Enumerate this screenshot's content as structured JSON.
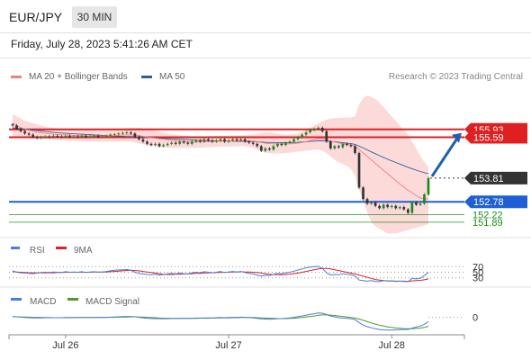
{
  "header": {
    "pair": "EUR/JPY",
    "timeframe": "30 MIN"
  },
  "datetime": "Friday, July 28, 2023 5:41:26 AM CET",
  "legend": {
    "ma20": {
      "label": "MA 20 + Bollinger Bands",
      "color": "#f08080"
    },
    "ma50": {
      "label": "MA 50",
      "color": "#2c5e9e"
    }
  },
  "credit": "Research © 2023 Trading Central",
  "colors": {
    "resistance": "#e02020",
    "support": "#1e5fd6",
    "target": "#1b8a1b",
    "current": "#333333",
    "arrow": "#1e5fb0",
    "bollinger": "#fbd4d4",
    "bull": "#1b8a1b",
    "bear": "#333333"
  },
  "chart_data": [
    {
      "type": "candlestick",
      "title": "EUR/JPY 30 MIN",
      "x_ticks": [
        "Jul 26",
        "Jul 27",
        "Jul 28"
      ],
      "price_levels": [
        {
          "label": "155.93",
          "value": 155.93,
          "kind": "resistance"
        },
        {
          "label": "155.59",
          "value": 155.59,
          "kind": "resistance"
        },
        {
          "label": "153.81",
          "value": 153.81,
          "kind": "current"
        },
        {
          "label": "152.78",
          "value": 152.78,
          "kind": "support"
        },
        {
          "label": "152.22",
          "value": 152.22,
          "kind": "target"
        },
        {
          "label": "151.89",
          "value": 151.89,
          "kind": "target"
        }
      ],
      "closes": [
        156.1,
        155.95,
        155.85,
        155.75,
        155.7,
        155.6,
        155.55,
        155.6,
        155.62,
        155.6,
        155.65,
        155.62,
        155.6,
        155.65,
        155.6,
        155.62,
        155.6,
        155.65,
        155.6,
        155.62,
        155.65,
        155.6,
        155.62,
        155.65,
        155.7,
        155.72,
        155.75,
        155.78,
        155.8,
        155.75,
        155.6,
        155.5,
        155.4,
        155.3,
        155.25,
        155.3,
        155.2,
        155.25,
        155.3,
        155.35,
        155.3,
        155.4,
        155.35,
        155.3,
        155.4,
        155.45,
        155.4,
        155.5,
        155.45,
        155.4,
        155.45,
        155.5,
        155.4,
        155.45,
        155.5,
        155.45,
        155.5,
        155.4,
        155.35,
        155.3,
        155.2,
        155.0,
        155.1,
        155.05,
        155.2,
        155.3,
        155.25,
        155.35,
        155.4,
        155.5,
        155.6,
        155.7,
        155.8,
        155.9,
        155.95,
        156.0,
        155.85,
        155.4,
        155.1,
        155.2,
        155.15,
        155.3,
        155.25,
        155.2,
        154.9,
        153.4,
        152.9,
        152.7,
        152.75,
        152.6,
        152.5,
        152.65,
        152.55,
        152.6,
        152.5,
        152.55,
        152.45,
        152.3,
        152.75,
        152.65,
        152.7,
        153.1,
        153.81
      ],
      "ma20": [
        156.2,
        156.1,
        156.0,
        155.95,
        155.9,
        155.85,
        155.8,
        155.78,
        155.76,
        155.74,
        155.72,
        155.71,
        155.7,
        155.69,
        155.68,
        155.67,
        155.66,
        155.66,
        155.65,
        155.65,
        155.65,
        155.64,
        155.64,
        155.64,
        155.65,
        155.66,
        155.67,
        155.68,
        155.69,
        155.69,
        155.68,
        155.66,
        155.63,
        155.6,
        155.57,
        155.55,
        155.52,
        155.5,
        155.48,
        155.46,
        155.43,
        155.42,
        155.4,
        155.38,
        155.38,
        155.38,
        155.38,
        155.39,
        155.4,
        155.4,
        155.41,
        155.42,
        155.42,
        155.43,
        155.43,
        155.43,
        155.44,
        155.44,
        155.43,
        155.42,
        155.4,
        155.36,
        155.33,
        155.31,
        155.3,
        155.3,
        155.3,
        155.3,
        155.3,
        155.31,
        155.33,
        155.36,
        155.4,
        155.44,
        155.48,
        155.52,
        155.52,
        155.48,
        155.42,
        155.38,
        155.34,
        155.31,
        155.28,
        155.25,
        155.2,
        155.05,
        154.9,
        154.75,
        154.6,
        154.45,
        154.3,
        154.15,
        154.0,
        153.85,
        153.7,
        153.55,
        153.42,
        153.28,
        153.18,
        153.05,
        152.95,
        152.9,
        152.9
      ],
      "ma50": [
        156.0,
        155.98,
        155.96,
        155.94,
        155.92,
        155.9,
        155.88,
        155.86,
        155.84,
        155.82,
        155.8,
        155.78,
        155.77,
        155.76,
        155.75,
        155.74,
        155.73,
        155.72,
        155.71,
        155.7,
        155.69,
        155.68,
        155.67,
        155.66,
        155.65,
        155.64,
        155.63,
        155.63,
        155.62,
        155.62,
        155.61,
        155.6,
        155.59,
        155.58,
        155.57,
        155.56,
        155.55,
        155.54,
        155.53,
        155.52,
        155.51,
        155.5,
        155.49,
        155.48,
        155.47,
        155.46,
        155.45,
        155.45,
        155.44,
        155.44,
        155.43,
        155.43,
        155.42,
        155.42,
        155.42,
        155.41,
        155.41,
        155.41,
        155.4,
        155.4,
        155.39,
        155.38,
        155.37,
        155.36,
        155.36,
        155.35,
        155.35,
        155.35,
        155.35,
        155.36,
        155.37,
        155.38,
        155.39,
        155.41,
        155.42,
        155.43,
        155.43,
        155.42,
        155.4,
        155.39,
        155.37,
        155.35,
        155.33,
        155.31,
        155.28,
        155.2,
        155.12,
        155.04,
        154.95,
        154.87,
        154.79,
        154.71,
        154.63,
        154.56,
        154.49,
        154.42,
        154.35,
        154.28,
        154.22,
        154.16,
        154.1,
        154.05,
        154.0
      ],
      "bb_upper": [
        156.6,
        156.5,
        156.4,
        156.3,
        156.25,
        156.2,
        156.15,
        156.1,
        156.05,
        156.02,
        156.0,
        155.98,
        155.96,
        155.95,
        155.94,
        155.93,
        155.92,
        155.92,
        155.91,
        155.9,
        155.9,
        155.89,
        155.89,
        155.89,
        155.9,
        155.92,
        155.94,
        155.96,
        155.98,
        155.99,
        156.0,
        156.0,
        155.98,
        155.96,
        155.92,
        155.88,
        155.84,
        155.8,
        155.75,
        155.72,
        155.7,
        155.68,
        155.66,
        155.64,
        155.62,
        155.62,
        155.62,
        155.62,
        155.63,
        155.64,
        155.65,
        155.66,
        155.66,
        155.67,
        155.67,
        155.67,
        155.68,
        155.68,
        155.7,
        155.72,
        155.75,
        155.78,
        155.8,
        155.8,
        155.78,
        155.75,
        155.72,
        155.7,
        155.7,
        155.72,
        155.76,
        155.82,
        155.9,
        156.0,
        156.1,
        156.2,
        156.28,
        156.35,
        156.4,
        156.42,
        156.43,
        156.44,
        156.45,
        156.45,
        156.5,
        157.0,
        157.3,
        157.4,
        157.35,
        157.25,
        157.1,
        156.9,
        156.7,
        156.5,
        156.3,
        156.1,
        155.9,
        155.7,
        155.4,
        155.1,
        154.8,
        154.5,
        154.3
      ],
      "bb_lower": [
        155.6,
        155.58,
        155.56,
        155.55,
        155.54,
        155.53,
        155.52,
        155.52,
        155.51,
        155.5,
        155.48,
        155.47,
        155.46,
        155.45,
        155.44,
        155.43,
        155.42,
        155.42,
        155.41,
        155.4,
        155.4,
        155.39,
        155.39,
        155.39,
        155.4,
        155.4,
        155.4,
        155.4,
        155.4,
        155.39,
        155.36,
        155.32,
        155.28,
        155.24,
        155.2,
        155.18,
        155.16,
        155.14,
        155.12,
        155.12,
        155.12,
        155.12,
        155.12,
        155.12,
        155.12,
        155.12,
        155.12,
        155.14,
        155.15,
        155.16,
        155.17,
        155.18,
        155.18,
        155.19,
        155.19,
        155.19,
        155.2,
        155.2,
        155.16,
        155.12,
        155.05,
        154.98,
        154.92,
        154.9,
        154.88,
        154.88,
        154.88,
        154.9,
        154.92,
        154.94,
        154.96,
        154.98,
        155.0,
        155.02,
        155.04,
        155.05,
        155.0,
        154.9,
        154.75,
        154.6,
        154.5,
        154.42,
        154.35,
        154.2,
        153.9,
        153.3,
        152.8,
        152.3,
        151.9,
        151.7,
        151.6,
        151.5,
        151.4,
        151.4,
        151.4,
        151.45,
        151.5,
        151.55,
        151.6,
        151.65,
        151.7,
        151.75,
        151.8
      ],
      "y_range": [
        151.3,
        157.8
      ]
    },
    {
      "type": "line",
      "title": "RSI",
      "series": [
        {
          "name": "RSI",
          "color": "#4a7fd6"
        },
        {
          "name": "9MA",
          "color": "#e02020"
        }
      ],
      "y_ticks": [
        "70",
        "50",
        "30"
      ],
      "y_range": [
        0,
        100
      ],
      "rsi": [
        55,
        50,
        48,
        47,
        46,
        45,
        47,
        49,
        50,
        49,
        51,
        50,
        49,
        52,
        50,
        51,
        50,
        52,
        49,
        51,
        52,
        50,
        51,
        53,
        55,
        57,
        58,
        59,
        60,
        57,
        50,
        46,
        44,
        42,
        41,
        43,
        40,
        42,
        44,
        46,
        44,
        47,
        45,
        44,
        48,
        50,
        48,
        52,
        50,
        48,
        50,
        53,
        49,
        51,
        53,
        51,
        53,
        49,
        46,
        44,
        40,
        36,
        39,
        38,
        43,
        46,
        45,
        48,
        50,
        54,
        58,
        62,
        66,
        68,
        70,
        71,
        64,
        48,
        40,
        42,
        41,
        45,
        43,
        41,
        36,
        22,
        20,
        18,
        20,
        17,
        16,
        20,
        18,
        19,
        17,
        18,
        17,
        16,
        28,
        26,
        28,
        38,
        50
      ],
      "ma9": [
        52,
        51,
        50,
        49,
        48,
        48,
        48,
        48,
        48,
        48,
        48,
        49,
        49,
        50,
        50,
        50,
        50,
        50,
        50,
        50,
        51,
        51,
        51,
        51,
        52,
        53,
        54,
        55,
        56,
        57,
        56,
        55,
        53,
        51,
        49,
        47,
        45,
        43,
        42,
        42,
        43,
        43,
        44,
        44,
        45,
        46,
        46,
        47,
        48,
        48,
        49,
        49,
        50,
        50,
        51,
        51,
        52,
        51,
        51,
        50,
        49,
        47,
        45,
        43,
        42,
        41,
        41,
        42,
        43,
        45,
        47,
        50,
        53,
        56,
        59,
        62,
        64,
        64,
        62,
        59,
        56,
        53,
        50,
        47,
        44,
        40,
        36,
        32,
        28,
        24,
        22,
        20,
        19,
        19,
        18,
        18,
        18,
        17,
        19,
        20,
        21,
        23,
        26
      ]
    },
    {
      "type": "line",
      "title": "MACD",
      "series": [
        {
          "name": "MACD",
          "color": "#4a7fd6"
        },
        {
          "name": "MACD Signal",
          "color": "#4f9a2a"
        }
      ],
      "y_ticks": [
        "0"
      ],
      "macd": [
        0.05,
        0.03,
        0.01,
        -0.01,
        -0.02,
        -0.03,
        -0.03,
        -0.03,
        -0.02,
        -0.02,
        -0.02,
        -0.02,
        -0.02,
        -0.01,
        -0.01,
        -0.01,
        -0.01,
        -0.01,
        -0.01,
        -0.01,
        0.0,
        0.0,
        0.0,
        0.0,
        0.01,
        0.02,
        0.03,
        0.04,
        0.05,
        0.05,
        0.03,
        0.0,
        -0.03,
        -0.05,
        -0.07,
        -0.07,
        -0.08,
        -0.08,
        -0.08,
        -0.07,
        -0.07,
        -0.06,
        -0.06,
        -0.06,
        -0.05,
        -0.04,
        -0.04,
        -0.03,
        -0.03,
        -0.03,
        -0.02,
        -0.01,
        -0.02,
        -0.01,
        0.0,
        0.0,
        0.01,
        0.0,
        -0.01,
        -0.03,
        -0.06,
        -0.09,
        -0.1,
        -0.11,
        -0.1,
        -0.08,
        -0.07,
        -0.05,
        -0.03,
        0.0,
        0.04,
        0.08,
        0.12,
        0.17,
        0.21,
        0.25,
        0.24,
        0.16,
        0.08,
        0.03,
        -0.02,
        -0.04,
        -0.06,
        -0.08,
        -0.13,
        -0.3,
        -0.44,
        -0.54,
        -0.6,
        -0.66,
        -0.7,
        -0.72,
        -0.73,
        -0.73,
        -0.72,
        -0.71,
        -0.7,
        -0.7,
        -0.62,
        -0.56,
        -0.5,
        -0.4,
        -0.25
      ],
      "signal": [
        0.03,
        0.03,
        0.02,
        0.02,
        0.01,
        0.0,
        0.0,
        -0.01,
        -0.01,
        -0.01,
        -0.02,
        -0.02,
        -0.02,
        -0.02,
        -0.02,
        -0.02,
        -0.01,
        -0.01,
        -0.01,
        -0.01,
        -0.01,
        -0.01,
        -0.01,
        0.0,
        0.0,
        0.0,
        0.01,
        0.01,
        0.02,
        0.03,
        0.03,
        0.02,
        0.02,
        0.0,
        -0.01,
        -0.02,
        -0.04,
        -0.05,
        -0.05,
        -0.06,
        -0.06,
        -0.06,
        -0.06,
        -0.06,
        -0.06,
        -0.06,
        -0.05,
        -0.05,
        -0.05,
        -0.04,
        -0.04,
        -0.03,
        -0.03,
        -0.03,
        -0.02,
        -0.02,
        -0.01,
        -0.01,
        -0.01,
        -0.01,
        -0.02,
        -0.03,
        -0.04,
        -0.05,
        -0.06,
        -0.07,
        -0.07,
        -0.07,
        -0.06,
        -0.05,
        -0.03,
        -0.01,
        0.02,
        0.05,
        0.08,
        0.12,
        0.14,
        0.15,
        0.13,
        0.11,
        0.08,
        0.05,
        0.02,
        -0.01,
        -0.04,
        -0.1,
        -0.17,
        -0.25,
        -0.32,
        -0.39,
        -0.45,
        -0.5,
        -0.55,
        -0.58,
        -0.61,
        -0.63,
        -0.65,
        -0.66,
        -0.66,
        -0.64,
        -0.62,
        -0.58,
        -0.52
      ],
      "y_range": [
        -0.85,
        0.55
      ]
    }
  ]
}
